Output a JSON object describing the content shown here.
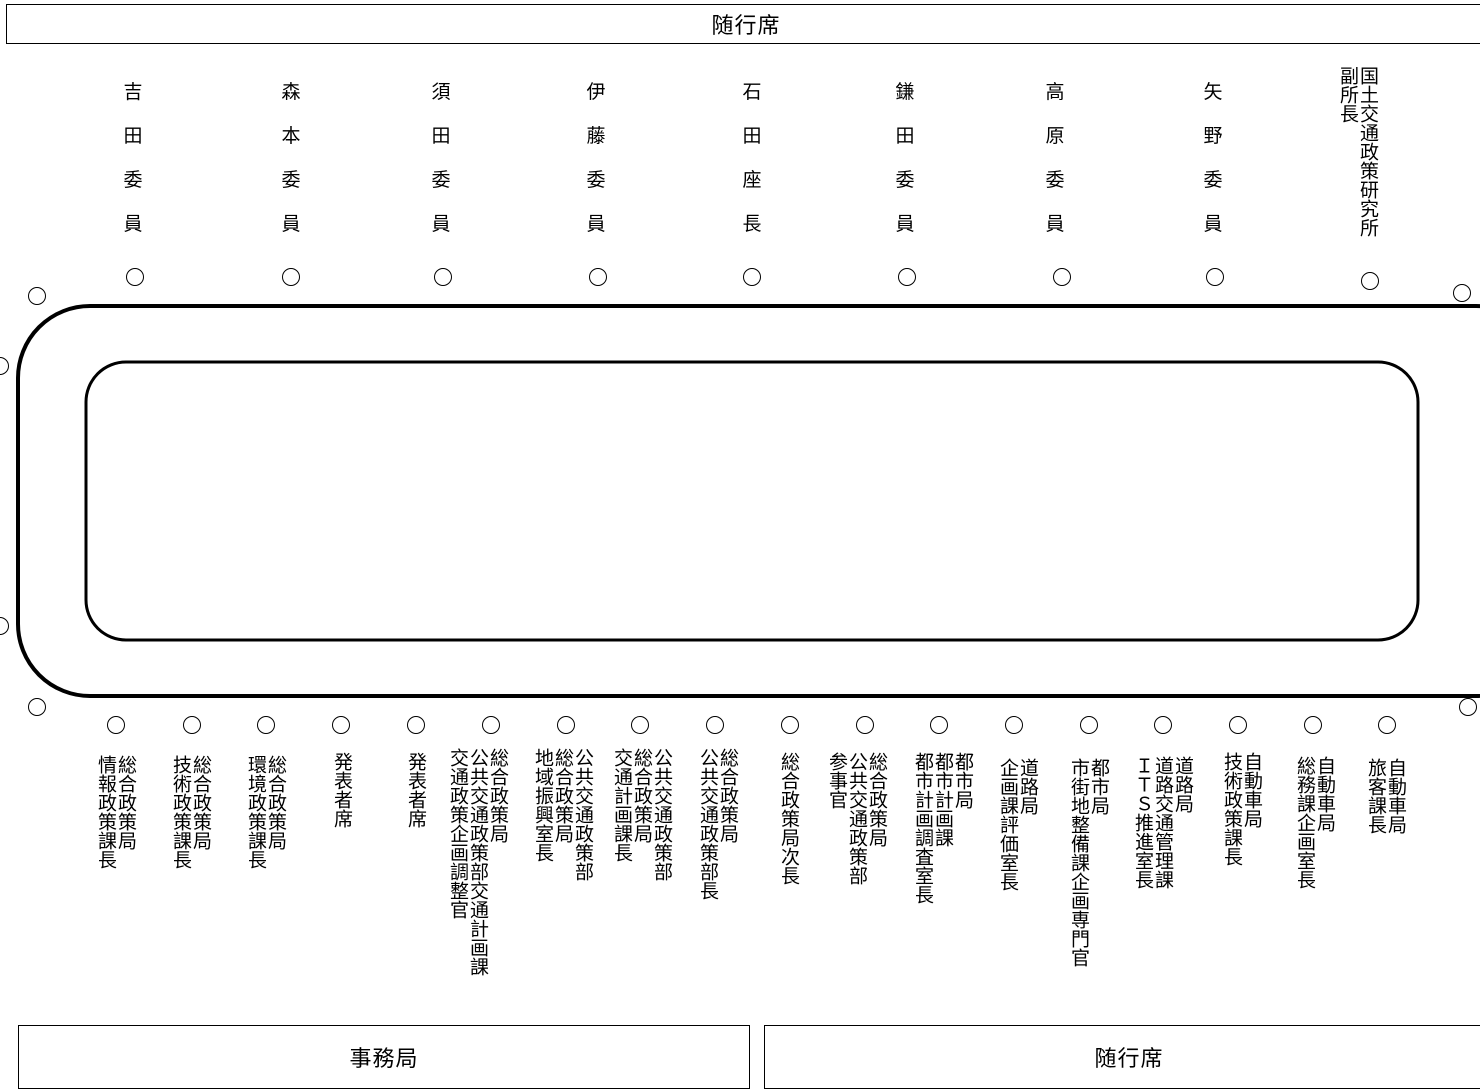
{
  "header": {
    "title": "随行席"
  },
  "footer": {
    "left_title": "事務局",
    "right_title": "随行席"
  },
  "top_members": [
    {
      "name": "吉田委員"
    },
    {
      "name": "森本委員"
    },
    {
      "name": "須田委員"
    },
    {
      "name": "伊藤委員"
    },
    {
      "name": "石田座長"
    },
    {
      "name": "鎌田委員"
    },
    {
      "name": "高原委員"
    },
    {
      "name": "矢野委員"
    }
  ],
  "top_right_member": {
    "lines": [
      "国土交通政策研究所",
      "副所長"
    ]
  },
  "bottom_members": [
    {
      "lines": [
        "総合政策局",
        "情報政策課長"
      ]
    },
    {
      "lines": [
        "総合政策局",
        "技術政策課長"
      ]
    },
    {
      "lines": [
        "総合政策局",
        "環境政策課長"
      ]
    },
    {
      "lines": [
        "発表者席"
      ]
    },
    {
      "lines": [
        "発表者席"
      ]
    },
    {
      "lines": [
        "総合政策局",
        "公共交通政策部交通計画課",
        "交通政策企画調整官"
      ]
    },
    {
      "lines": [
        "公共交通政策部",
        "総合政策局",
        "地域振興室長"
      ]
    },
    {
      "lines": [
        "公共交通政策部",
        "総合政策局",
        "交通計画課長"
      ]
    },
    {
      "lines": [
        "総合政策局",
        "公共交通政策部長"
      ]
    },
    {
      "lines": [
        "総合政策局次長"
      ]
    },
    {
      "lines": [
        "総合政策局",
        "公共交通政策部",
        "参事官"
      ]
    },
    {
      "lines": [
        "都市局",
        "都市計画課",
        "都市計画調査室長"
      ]
    },
    {
      "lines": [
        "道路局",
        "企画課評価室長"
      ]
    },
    {
      "lines": [
        "都市局",
        "市街地整備課企画専門官"
      ]
    },
    {
      "lines": [
        "道路局",
        "道路交通管理課",
        "ＩＴＳ推進室長"
      ]
    },
    {
      "lines": [
        "自動車局",
        "技術政策課長"
      ]
    },
    {
      "lines": [
        "自動車局",
        "総務課企画室長"
      ]
    },
    {
      "lines": [
        "自動車局",
        "旅客課長"
      ]
    }
  ]
}
